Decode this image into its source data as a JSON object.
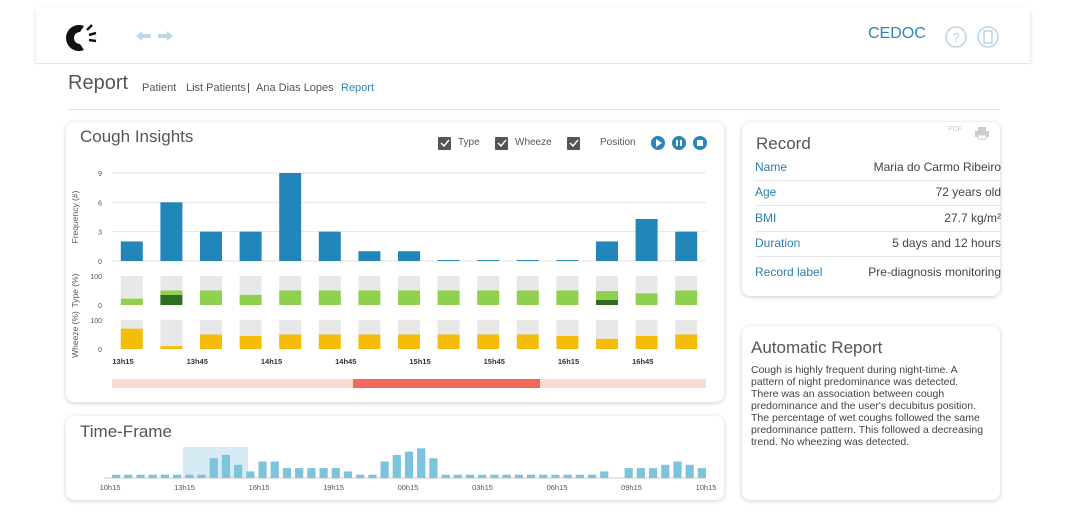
{
  "header": {
    "brand": "CEDOC"
  },
  "breadcrumb": {
    "title": "Report",
    "items": [
      "Patient",
      "List Patients",
      "Ana Dias Lopes",
      "Report"
    ]
  },
  "cough_insights": {
    "title": "Cough Insights",
    "toggles": [
      "Type",
      "Wheeze",
      "Position"
    ],
    "time_labels": [
      "13h15",
      "13h45",
      "14h15",
      "14h45",
      "15h15",
      "15h45",
      "16h15",
      "16h45"
    ],
    "chart_data": [
      {
        "type": "bar",
        "ylabel": "Frequency (#)",
        "color": "#2386b8",
        "ylim": [
          0,
          9
        ],
        "yticks": [
          0,
          3,
          6,
          9
        ],
        "grid": true,
        "values": [
          2,
          6,
          3,
          3,
          9,
          3,
          1,
          1,
          0.1,
          0.1,
          0.1,
          0.1,
          2,
          4.3,
          3
        ]
      },
      {
        "type": "stacked_bar",
        "ylabel": "Type (%)",
        "ylim": [
          0,
          100
        ],
        "yticks": [
          0,
          100
        ],
        "series": [
          {
            "color": "#2e6e1e",
            "values": [
              0,
              35,
              0,
              0,
              0,
              0,
              0,
              0,
              0,
              0,
              0,
              0,
              18,
              0,
              0
            ]
          },
          {
            "color": "#8fd14f",
            "values": [
              22,
              15,
              50,
              35,
              50,
              50,
              50,
              50,
              50,
              50,
              50,
              50,
              30,
              40,
              50
            ]
          }
        ]
      },
      {
        "type": "stacked_bar",
        "ylabel": "Wheeze (%)",
        "ylim": [
          0,
          100
        ],
        "yticks": [
          0,
          100
        ],
        "series": [
          {
            "color": "#f5bd0a",
            "values": [
              70,
              10,
              50,
              45,
              50,
              50,
              50,
              50,
              50,
              50,
              50,
              45,
              35,
              45,
              50
            ]
          }
        ]
      }
    ]
  },
  "record": {
    "title": "Record",
    "pdf": "PDF",
    "rows": [
      [
        "Name",
        "Maria do Carmo Ribeiro"
      ],
      [
        "Age",
        "72 years old"
      ],
      [
        "BMI",
        "27.7 kg/m²"
      ],
      [
        "Duration",
        "5 days and 12 hours"
      ],
      [
        "Record label",
        "Pre-diagnosis monitoring"
      ]
    ]
  },
  "automatic_report": {
    "title": "Automatic Report",
    "text": "Cough is highly frequent during night-time. A pattern of night predominance was detected. There was an association between cough predominance and the user's decubitus position. The percentage of wet coughs followed the same predominance pattern. This followed a decreasing trend. No wheezing was detected."
  },
  "time_frame": {
    "title": "Time-Frame",
    "chart_data": {
      "type": "bar",
      "color": "#7cc4de",
      "x_labels": [
        "10h15",
        "13h15",
        "16h15",
        "19h15",
        "00h15",
        "03h15",
        "06h15",
        "09h15",
        "10h15"
      ],
      "values": [
        1,
        1,
        1,
        1,
        1,
        1,
        1,
        1,
        6,
        7,
        4,
        2,
        5,
        5,
        3,
        3,
        3,
        3,
        3,
        2,
        1,
        1,
        5,
        7,
        8,
        9,
        6,
        1,
        1,
        1,
        1,
        1,
        1,
        1,
        1,
        1,
        1,
        1,
        1,
        1,
        2,
        0,
        3,
        3,
        3,
        4,
        5,
        4,
        3
      ]
    }
  }
}
